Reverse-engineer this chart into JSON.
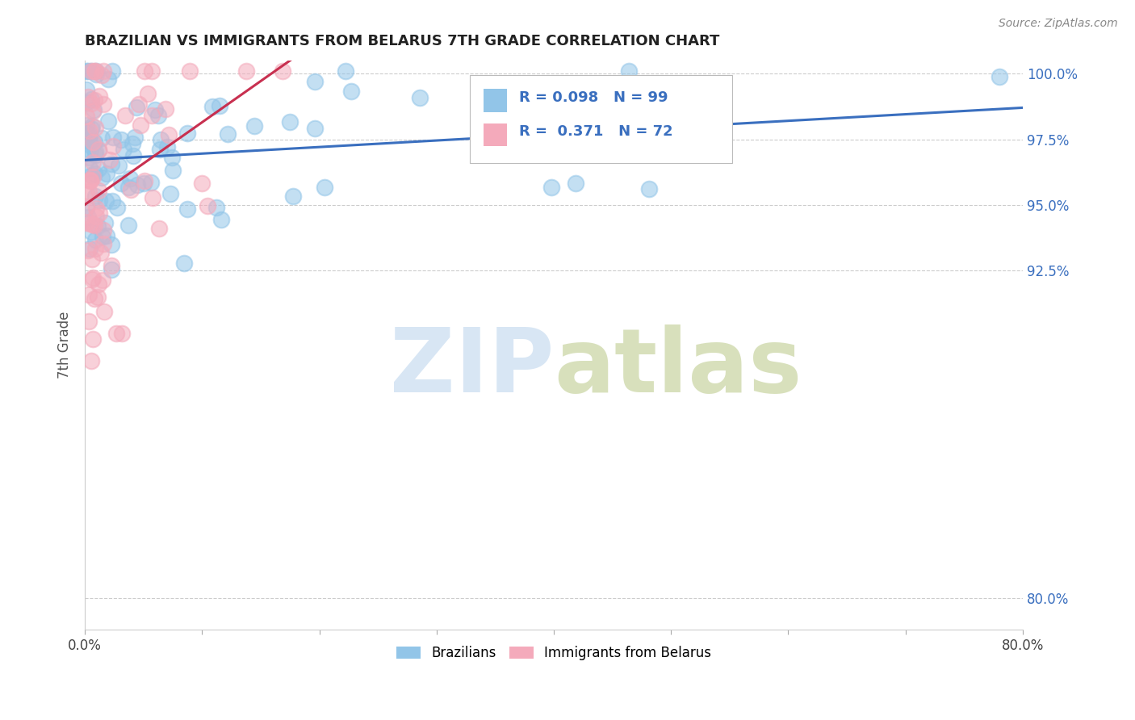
{
  "title": "BRAZILIAN VS IMMIGRANTS FROM BELARUS 7TH GRADE CORRELATION CHART",
  "source_text": "Source: ZipAtlas.com",
  "ylabel": "7th Grade",
  "xlim": [
    0.0,
    0.8
  ],
  "ylim": [
    0.788,
    1.005
  ],
  "xticks": [
    0.0,
    0.1,
    0.2,
    0.3,
    0.4,
    0.5,
    0.6,
    0.7,
    0.8
  ],
  "xticklabels": [
    "0.0%",
    "",
    "",
    "",
    "",
    "",
    "",
    "",
    "80.0%"
  ],
  "yticks": [
    0.8,
    0.925,
    0.95,
    0.975,
    1.0
  ],
  "yticklabels": [
    "80.0%",
    "92.5%",
    "95.0%",
    "97.5%",
    "100.0%"
  ],
  "blue_color": "#92C5E8",
  "pink_color": "#F4AABB",
  "blue_line_color": "#3A6FBF",
  "pink_line_color": "#C83050",
  "legend_R1": "0.098",
  "legend_N1": "99",
  "legend_R2": "0.371",
  "legend_N2": "72",
  "legend_label1": "Brazilians",
  "legend_label2": "Immigrants from Belarus",
  "seed": 42
}
